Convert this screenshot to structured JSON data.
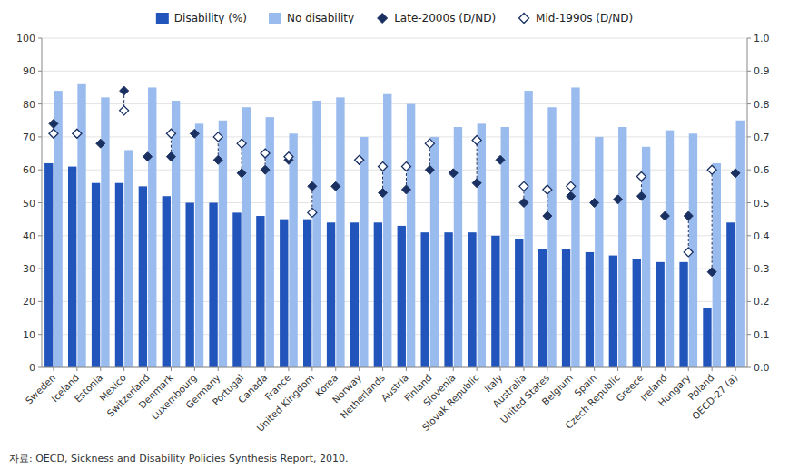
{
  "chart_data": {
    "type": "bar",
    "categories": [
      "Sweden",
      "Iceland",
      "Estonia",
      "Mexico",
      "Switzerland",
      "Denmark",
      "Luxembourg",
      "Germany",
      "Portugal",
      "Canada",
      "France",
      "United Kingdom",
      "Korea",
      "Norway",
      "Netherlands",
      "Austria",
      "Finland",
      "Slovenia",
      "Slovak Republic",
      "Italy",
      "Australia",
      "United States",
      "Belgium",
      "Spain",
      "Czech Republic",
      "Greece",
      "Ireland",
      "Hungary",
      "Poland",
      "OECD-27 (a)"
    ],
    "series": [
      {
        "name": "Disability (%)",
        "color": "#2255bb",
        "values": [
          62,
          61,
          56,
          56,
          55,
          52,
          50,
          50,
          47,
          46,
          45,
          45,
          44,
          44,
          44,
          43,
          41,
          41,
          41,
          40,
          39,
          36,
          36,
          35,
          34,
          33,
          32,
          32,
          18,
          44
        ]
      },
      {
        "name": "No disability",
        "color": "#99bbee",
        "values": [
          84,
          86,
          82,
          66,
          85,
          81,
          74,
          75,
          79,
          76,
          71,
          81,
          82,
          70,
          83,
          80,
          70,
          73,
          74,
          73,
          84,
          79,
          85,
          70,
          73,
          67,
          72,
          71,
          62,
          75
        ]
      },
      {
        "name": "Late-2000s (D/ND)",
        "type": "scatter",
        "axis": "y2",
        "marker": "diamond",
        "color": "#1a3060",
        "values": [
          0.74,
          0.71,
          0.68,
          0.84,
          0.64,
          0.64,
          0.71,
          0.63,
          0.59,
          0.6,
          0.63,
          0.55,
          0.55,
          0.63,
          0.53,
          0.54,
          0.6,
          0.59,
          0.56,
          0.63,
          0.5,
          0.46,
          0.52,
          0.5,
          0.51,
          0.52,
          0.46,
          0.46,
          0.29,
          0.59
        ]
      },
      {
        "name": "Mid-1990s (D/ND)",
        "type": "scatter",
        "axis": "y2",
        "marker": "diamond-open",
        "color": "#1a3060",
        "values": [
          0.71,
          0.71,
          null,
          0.78,
          null,
          0.71,
          null,
          0.7,
          0.68,
          0.65,
          0.64,
          0.47,
          null,
          0.63,
          0.61,
          0.61,
          0.68,
          null,
          0.69,
          null,
          0.55,
          0.54,
          0.55,
          null,
          null,
          0.58,
          null,
          0.35,
          0.6,
          null
        ]
      }
    ],
    "ylim": [
      0,
      100
    ],
    "yticks": [
      0,
      10,
      20,
      30,
      40,
      50,
      60,
      70,
      80,
      90,
      100
    ],
    "y2lim": [
      0,
      1
    ],
    "y2ticks": [
      {
        "value": 0,
        "label": "0.0"
      },
      0.1,
      0.2,
      0.3,
      0.4,
      0.5,
      0.6,
      0.7,
      0.8,
      0.9,
      {
        "value": 1,
        "label": "1.0"
      }
    ],
    "grid": true,
    "legend": "top",
    "annotations": [
      "자료: OECD, Sickness and Disability Policies Synthesis Report, 2010."
    ]
  }
}
